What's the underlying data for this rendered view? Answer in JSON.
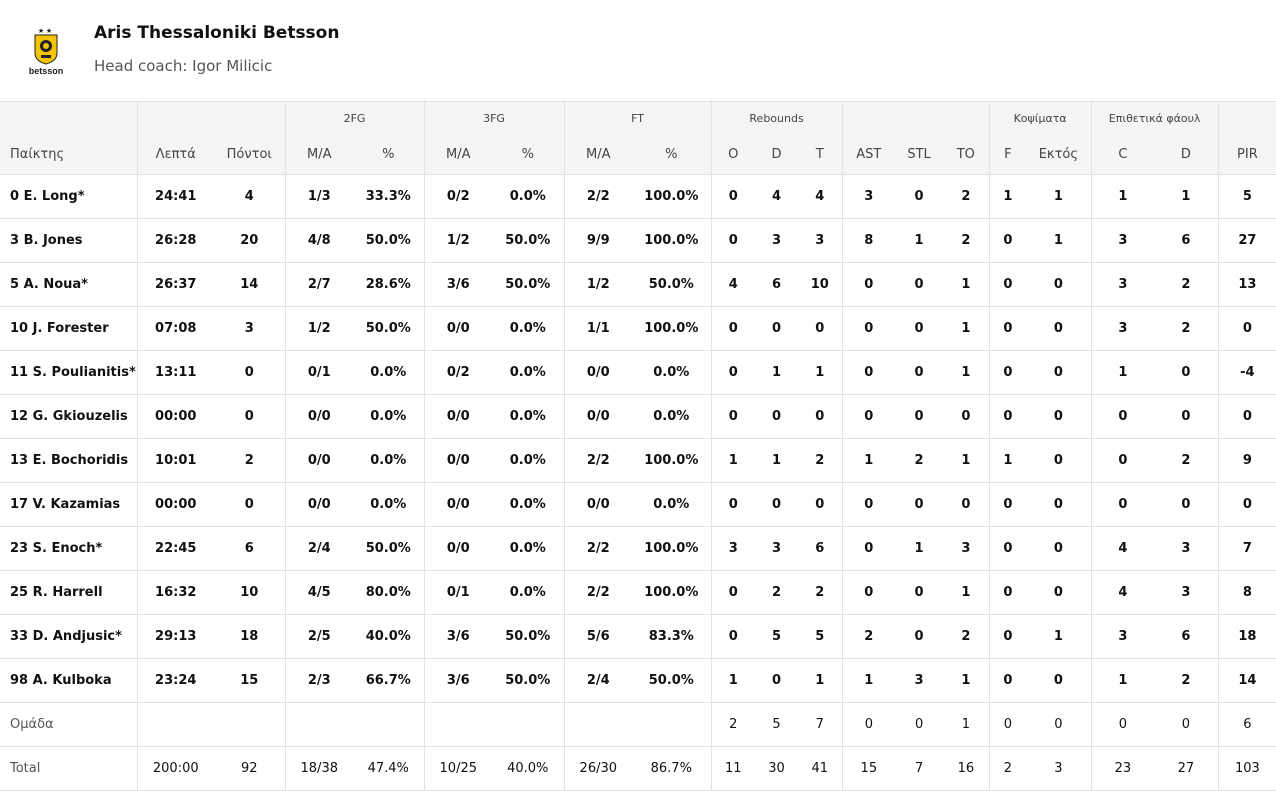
{
  "team": {
    "name": "Aris Thessaloniki Betsson",
    "coach": "Head coach: Igor Milicic",
    "logo_text": "betsson",
    "logo_color": "#f5c400"
  },
  "groups": {
    "fg2": "2FG",
    "fg3": "3FG",
    "ft": "FT",
    "reb": "Rebounds",
    "blk": "Κοψίματα",
    "fouls": "Επιθετικά φάουλ"
  },
  "columns": [
    "Παίκτης",
    "Λεπτά",
    "Πόντοι",
    "M/A",
    "%",
    "M/A",
    "%",
    "M/A",
    "%",
    "O",
    "D",
    "T",
    "AST",
    "STL",
    "TO",
    "F",
    "Εκτός",
    "C",
    "D",
    "PIR"
  ],
  "players": [
    [
      "0 E. Long*",
      "24:41",
      "4",
      "1/3",
      "33.3%",
      "0/2",
      "0.0%",
      "2/2",
      "100.0%",
      "0",
      "4",
      "4",
      "3",
      "0",
      "2",
      "1",
      "1",
      "1",
      "1",
      "5"
    ],
    [
      "3 B. Jones",
      "26:28",
      "20",
      "4/8",
      "50.0%",
      "1/2",
      "50.0%",
      "9/9",
      "100.0%",
      "0",
      "3",
      "3",
      "8",
      "1",
      "2",
      "0",
      "1",
      "3",
      "6",
      "27"
    ],
    [
      "5 A. Noua*",
      "26:37",
      "14",
      "2/7",
      "28.6%",
      "3/6",
      "50.0%",
      "1/2",
      "50.0%",
      "4",
      "6",
      "10",
      "0",
      "0",
      "1",
      "0",
      "0",
      "3",
      "2",
      "13"
    ],
    [
      "10 J. Forester",
      "07:08",
      "3",
      "1/2",
      "50.0%",
      "0/0",
      "0.0%",
      "1/1",
      "100.0%",
      "0",
      "0",
      "0",
      "0",
      "0",
      "1",
      "0",
      "0",
      "3",
      "2",
      "0"
    ],
    [
      "11 S. Poulianitis*",
      "13:11",
      "0",
      "0/1",
      "0.0%",
      "0/2",
      "0.0%",
      "0/0",
      "0.0%",
      "0",
      "1",
      "1",
      "0",
      "0",
      "1",
      "0",
      "0",
      "1",
      "0",
      "-4"
    ],
    [
      "12 G. Gkiouzelis",
      "00:00",
      "0",
      "0/0",
      "0.0%",
      "0/0",
      "0.0%",
      "0/0",
      "0.0%",
      "0",
      "0",
      "0",
      "0",
      "0",
      "0",
      "0",
      "0",
      "0",
      "0",
      "0"
    ],
    [
      "13 E. Bochoridis",
      "10:01",
      "2",
      "0/0",
      "0.0%",
      "0/0",
      "0.0%",
      "2/2",
      "100.0%",
      "1",
      "1",
      "2",
      "1",
      "2",
      "1",
      "1",
      "0",
      "0",
      "2",
      "9"
    ],
    [
      "17 V. Kazamias",
      "00:00",
      "0",
      "0/0",
      "0.0%",
      "0/0",
      "0.0%",
      "0/0",
      "0.0%",
      "0",
      "0",
      "0",
      "0",
      "0",
      "0",
      "0",
      "0",
      "0",
      "0",
      "0"
    ],
    [
      "23 S. Enoch*",
      "22:45",
      "6",
      "2/4",
      "50.0%",
      "0/0",
      "0.0%",
      "2/2",
      "100.0%",
      "3",
      "3",
      "6",
      "0",
      "1",
      "3",
      "0",
      "0",
      "4",
      "3",
      "7"
    ],
    [
      "25 R. Harrell",
      "16:32",
      "10",
      "4/5",
      "80.0%",
      "0/1",
      "0.0%",
      "2/2",
      "100.0%",
      "0",
      "2",
      "2",
      "0",
      "0",
      "1",
      "0",
      "0",
      "4",
      "3",
      "8"
    ],
    [
      "33 D. Andjusic*",
      "29:13",
      "18",
      "2/5",
      "40.0%",
      "3/6",
      "50.0%",
      "5/6",
      "83.3%",
      "0",
      "5",
      "5",
      "2",
      "0",
      "2",
      "0",
      "1",
      "3",
      "6",
      "18"
    ],
    [
      "98 A. Kulboka",
      "23:24",
      "15",
      "2/3",
      "66.7%",
      "3/6",
      "50.0%",
      "2/4",
      "50.0%",
      "1",
      "0",
      "1",
      "1",
      "3",
      "1",
      "0",
      "0",
      "1",
      "2",
      "14"
    ]
  ],
  "team_row": [
    "Ομάδα",
    "",
    "",
    "",
    "",
    "",
    "",
    "",
    "",
    "2",
    "5",
    "7",
    "0",
    "0",
    "1",
    "0",
    "0",
    "0",
    "0",
    "6"
  ],
  "total_row": [
    "Total",
    "200:00",
    "92",
    "18/38",
    "47.4%",
    "10/25",
    "40.0%",
    "26/30",
    "86.7%",
    "11",
    "30",
    "41",
    "15",
    "7",
    "16",
    "2",
    "3",
    "23",
    "27",
    "103"
  ]
}
